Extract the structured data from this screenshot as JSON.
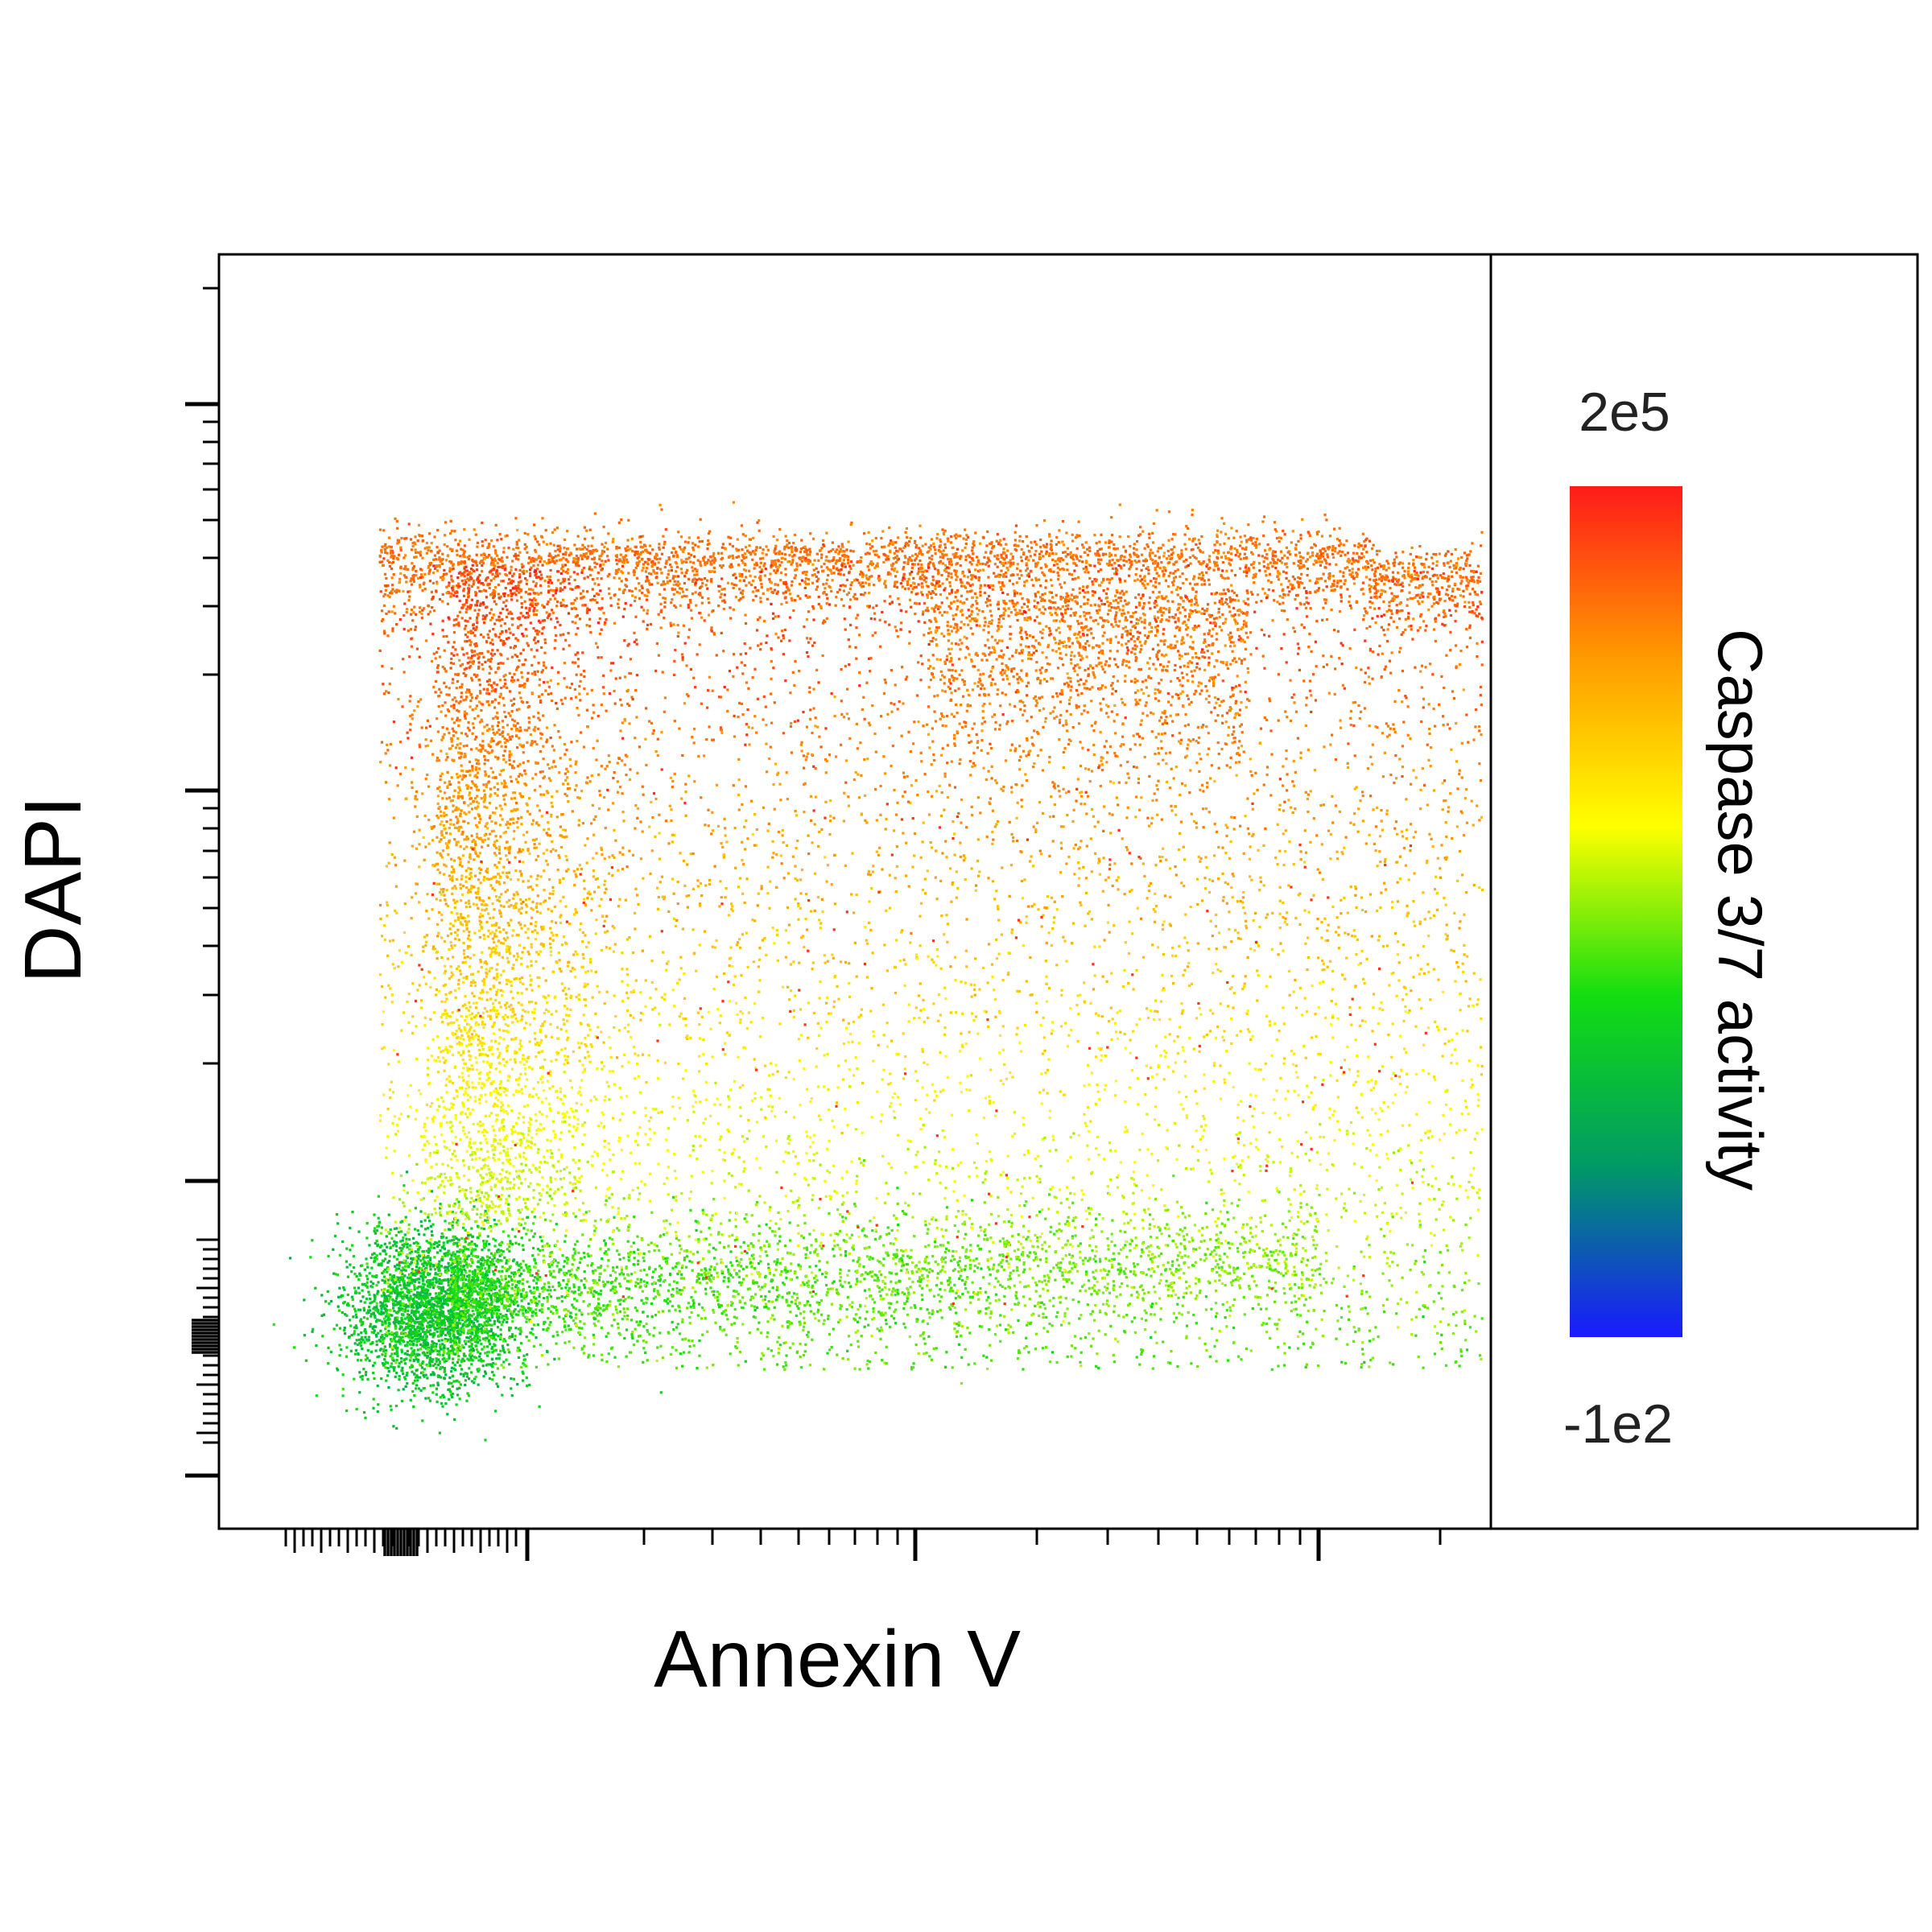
{
  "chart_data": {
    "type": "scatter",
    "title": "",
    "xlabel": "Annexin V",
    "ylabel": "DAPI",
    "x_scale": "log",
    "y_scale": "log",
    "x_tick_labels": [],
    "y_tick_labels": [],
    "grid": false,
    "point_colors": "density-colored by Caspase 3/7 activity (low = blue/green, high = orange/red)",
    "populations": [
      {
        "name": "",
        "location": "low Annexin V, low DAPI (dense cluster, lower-left)",
        "color_level": "green / teal"
      },
      {
        "name": "",
        "location": "Annexin V positive, low-mid DAPI (spread to the right)",
        "color_level": "green to yellow"
      },
      {
        "name": "",
        "location": "high DAPI band across full Annexin V range (top)",
        "color_level": "orange / red-orange"
      }
    ],
    "colorbar": {
      "label": "Caspase 3/7 activity",
      "max_label": "2e5",
      "min_label": "-1e2",
      "max": 200000,
      "min": -100,
      "colors": [
        "#1a1aff",
        "#009966",
        "#11dd11",
        "#ffff00",
        "#ff9900",
        "#ff1a1a"
      ]
    }
  }
}
